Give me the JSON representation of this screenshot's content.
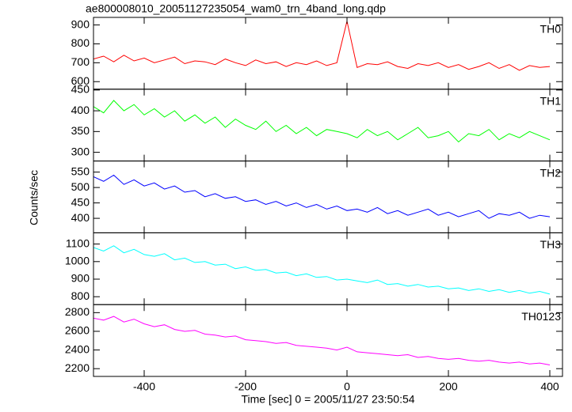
{
  "chart_data": {
    "type": "line",
    "title": "ae800008010_20051127235054_wam0_trn_4band_long.qdp",
    "xlabel": "Time [sec] 0 = 2005/11/27 23:50:54",
    "ylabel": "Counts/sec",
    "x": [
      -500,
      -480,
      -460,
      -440,
      -420,
      -400,
      -380,
      -360,
      -340,
      -320,
      -300,
      -280,
      -260,
      -240,
      -220,
      -200,
      -180,
      -160,
      -140,
      -120,
      -100,
      -80,
      -60,
      -40,
      -20,
      0,
      20,
      40,
      60,
      80,
      100,
      120,
      140,
      160,
      180,
      200,
      220,
      240,
      260,
      280,
      300,
      320,
      340,
      360,
      380,
      400
    ],
    "xlim": [
      -500,
      425
    ],
    "xticks": [
      -400,
      -200,
      0,
      200,
      400
    ],
    "series": [
      {
        "name": "TH0",
        "color": "#ff0000",
        "ylim": [
          560,
          940
        ],
        "yticks": [
          600,
          700,
          800,
          900
        ],
        "values": [
          720,
          735,
          705,
          740,
          710,
          725,
          700,
          715,
          730,
          695,
          710,
          705,
          690,
          720,
          700,
          685,
          715,
          695,
          705,
          680,
          700,
          690,
          710,
          685,
          700,
          920,
          675,
          695,
          690,
          705,
          680,
          670,
          695,
          685,
          700,
          675,
          690,
          665,
          680,
          700,
          670,
          690,
          660,
          685,
          675,
          680
        ]
      },
      {
        "name": "TH1",
        "color": "#00ff00",
        "ylim": [
          279,
          452
        ],
        "yticks": [
          300,
          350,
          400,
          450
        ],
        "values": [
          410,
          395,
          425,
          400,
          415,
          390,
          405,
          385,
          400,
          375,
          390,
          370,
          385,
          360,
          380,
          365,
          355,
          375,
          350,
          365,
          345,
          360,
          340,
          355,
          350,
          345,
          335,
          355,
          340,
          350,
          330,
          345,
          360,
          335,
          340,
          350,
          325,
          345,
          340,
          355,
          330,
          345,
          335,
          350,
          340,
          330
        ]
      },
      {
        "name": "TH2",
        "color": "#0000ff",
        "ylim": [
          353,
          586
        ],
        "yticks": [
          400,
          450,
          500,
          550
        ],
        "values": [
          535,
          520,
          540,
          510,
          525,
          505,
          515,
          495,
          505,
          485,
          490,
          470,
          480,
          465,
          470,
          455,
          460,
          445,
          455,
          440,
          450,
          435,
          445,
          430,
          440,
          425,
          430,
          420,
          435,
          415,
          425,
          410,
          420,
          430,
          410,
          420,
          405,
          415,
          425,
          400,
          415,
          410,
          420,
          400,
          410,
          405
        ]
      },
      {
        "name": "TH3",
        "color": "#00ffff",
        "ylim": [
          755,
          1164
        ],
        "yticks": [
          800,
          900,
          1000,
          1100
        ],
        "values": [
          1080,
          1060,
          1090,
          1050,
          1070,
          1040,
          1030,
          1045,
          1010,
          1020,
          995,
          1000,
          980,
          985,
          960,
          970,
          950,
          955,
          935,
          940,
          920,
          930,
          910,
          915,
          895,
          900,
          890,
          880,
          895,
          870,
          875,
          860,
          870,
          855,
          860,
          845,
          850,
          835,
          845,
          830,
          840,
          825,
          835,
          820,
          830,
          815
        ]
      },
      {
        "name": "TH0123",
        "color": "#ff00ff",
        "ylim": [
          2117,
          2886
        ],
        "yticks": [
          2200,
          2400,
          2600,
          2800
        ],
        "values": [
          2740,
          2720,
          2760,
          2700,
          2730,
          2680,
          2650,
          2670,
          2620,
          2600,
          2610,
          2570,
          2560,
          2540,
          2550,
          2510,
          2500,
          2490,
          2470,
          2480,
          2450,
          2440,
          2430,
          2420,
          2400,
          2430,
          2380,
          2370,
          2360,
          2350,
          2340,
          2350,
          2320,
          2330,
          2310,
          2300,
          2310,
          2290,
          2280,
          2290,
          2270,
          2260,
          2270,
          2250,
          2260,
          2240
        ]
      }
    ]
  }
}
